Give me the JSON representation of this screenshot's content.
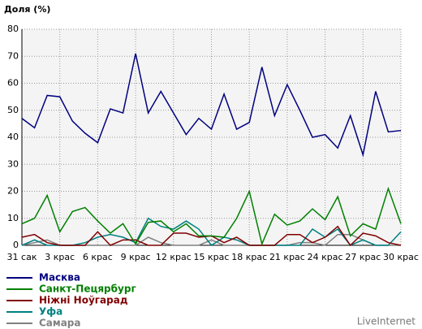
{
  "chart_data": {
    "type": "line",
    "title": "Доля (%)",
    "source": "LiveInternet",
    "categories": [
      "31 сак",
      null,
      null,
      "3 крас",
      null,
      null,
      "6 крас",
      null,
      null,
      "9 крас",
      null,
      null,
      "12 крас",
      null,
      null,
      "15 крас",
      null,
      null,
      "18 крас",
      null,
      null,
      "21 крас",
      null,
      null,
      "24 крас",
      null,
      null,
      "27 крас",
      null,
      null,
      "30 крас"
    ],
    "series": [
      {
        "name": "Масква",
        "color": "#000080",
        "values": [
          47,
          43.5,
          55.5,
          55,
          46,
          41.5,
          38,
          50.5,
          49,
          71,
          49,
          57,
          49,
          41,
          47,
          43,
          56,
          43,
          45.5,
          66,
          48,
          59.5,
          50,
          40,
          41,
          36,
          48,
          33.5,
          57,
          42,
          42.5
        ]
      },
      {
        "name": "Санкт-Пецярбург",
        "color": "#008000",
        "values": [
          8,
          10,
          18.5,
          5,
          12.5,
          14,
          9,
          4.5,
          8,
          0.5,
          8.5,
          9,
          5,
          8,
          3.5,
          3.5,
          3,
          10,
          20,
          0.5,
          11.5,
          7.5,
          9,
          13.5,
          9.5,
          18,
          3.5,
          8,
          6,
          21,
          8
        ]
      },
      {
        "name": "Ніжні Ноўгарад",
        "color": "#800000",
        "values": [
          3,
          4,
          1,
          0,
          0,
          0,
          5,
          0,
          2,
          2,
          0,
          0,
          4.5,
          4.5,
          3,
          3.5,
          1,
          3,
          0,
          0,
          0,
          4,
          4,
          1,
          3,
          7,
          0,
          4.5,
          3.5,
          1,
          0
        ]
      },
      {
        "name": "Уфа",
        "color": "#008080",
        "values": [
          0,
          2,
          0,
          0,
          0,
          1,
          3,
          4,
          3,
          1,
          10,
          7,
          6,
          9,
          6,
          0,
          3,
          2,
          0,
          0,
          0,
          0,
          0,
          6,
          3,
          6,
          0,
          2,
          0,
          0,
          5
        ]
      },
      {
        "name": "Самара",
        "color": "#808080",
        "values": [
          0,
          1,
          2,
          0,
          0,
          0,
          0,
          0,
          0,
          0,
          3,
          1,
          0,
          0,
          0,
          2,
          0,
          0,
          0,
          0,
          0,
          0,
          1,
          1,
          0,
          4,
          4,
          2,
          0,
          0,
          0
        ]
      }
    ],
    "ylim": [
      0,
      80
    ],
    "yticks": [
      0,
      10,
      20,
      30,
      40,
      50,
      60,
      70,
      80
    ],
    "grid": true
  }
}
